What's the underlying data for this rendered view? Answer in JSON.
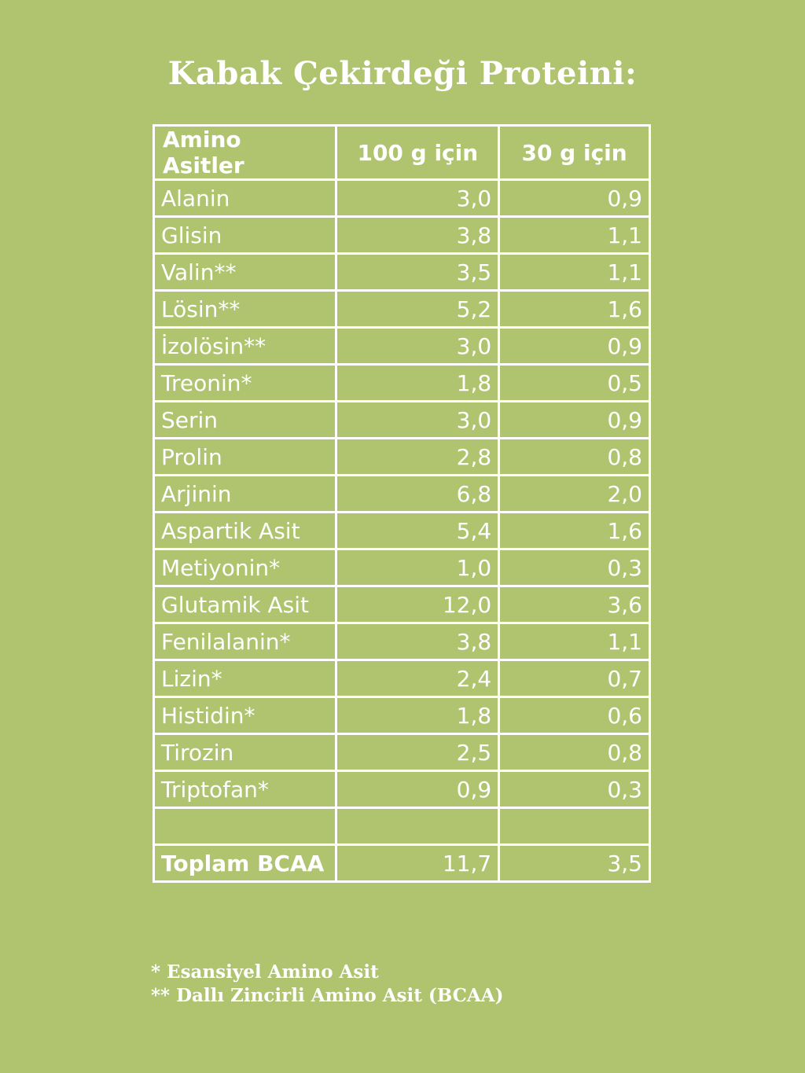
{
  "header": {
    "title": "Kabak Çekirdeği Proteini:"
  },
  "table": {
    "columns": [
      "Amino Asitler",
      "100 g için",
      "30 g için"
    ],
    "rows": [
      [
        "Alanin",
        "3,0",
        "0,9"
      ],
      [
        "Glisin",
        "3,8",
        "1,1"
      ],
      [
        "Valin**",
        "3,5",
        "1,1"
      ],
      [
        "Lösin**",
        "5,2",
        "1,6"
      ],
      [
        "İzolösin**",
        "3,0",
        "0,9"
      ],
      [
        "Treonin*",
        "1,8",
        "0,5"
      ],
      [
        "Serin",
        "3,0",
        "0,9"
      ],
      [
        "Prolin",
        "2,8",
        "0,8"
      ],
      [
        "Arjinin",
        "6,8",
        "2,0"
      ],
      [
        "Aspartik Asit",
        "5,4",
        "1,6"
      ],
      [
        "Metiyonin*",
        "1,0",
        "0,3"
      ],
      [
        "Glutamik Asit",
        "12,0",
        "3,6"
      ],
      [
        "Fenilalanin*",
        "3,8",
        "1,1"
      ],
      [
        "Lizin*",
        "2,4",
        "0,7"
      ],
      [
        "Histidin*",
        "1,8",
        "0,6"
      ],
      [
        "Tirozin",
        "2,5",
        "0,8"
      ],
      [
        "Triptofan*",
        "0,9",
        "0,3"
      ]
    ],
    "total": [
      "Toplam BCAA",
      "11,7",
      "3,5"
    ]
  },
  "footnotes": [
    "* Esansiyel Amino Asit",
    "** Dallı Zincirli Amino Asit (BCAA)"
  ]
}
